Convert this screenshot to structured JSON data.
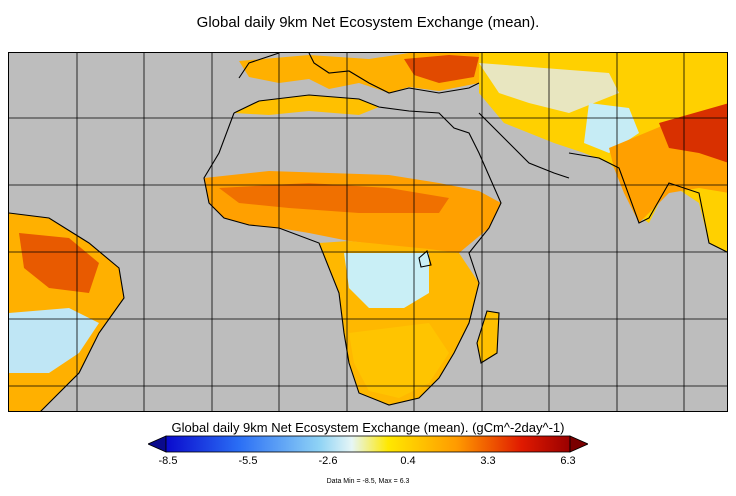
{
  "title": "Global daily 9km Net Ecosystem Exchange (mean).",
  "colorbar": {
    "title": "Global daily 9km Net Ecosystem Exchange (mean). (gCm^-2day^-1)",
    "ticks": [
      "-8.5",
      "-5.5",
      "-2.6",
      "0.4",
      "3.3",
      "6.3"
    ],
    "min_color": "#0a0a8c",
    "max_color": "#7a0000"
  },
  "data_range": "Data Min = -8.5, Max = 6.3",
  "colors": {
    "background": "#bdbdbd",
    "outline": "#000000"
  }
}
